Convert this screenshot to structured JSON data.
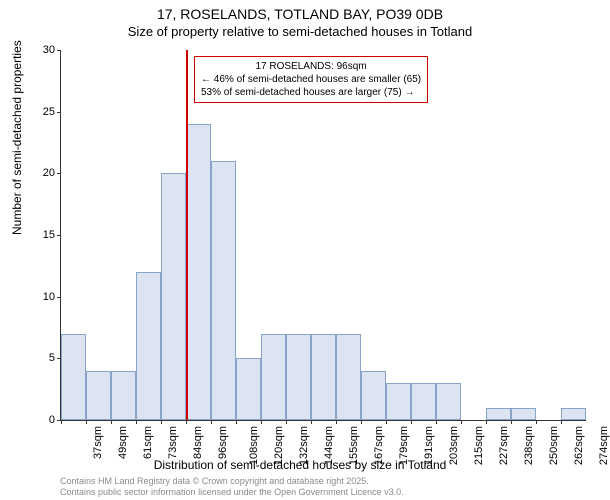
{
  "title": {
    "main": "17, ROSELANDS, TOTLAND BAY, PO39 0DB",
    "sub": "Size of property relative to semi-detached houses in Totland"
  },
  "axes": {
    "y_label": "Number of semi-detached properties",
    "x_label": "Distribution of semi-detached houses by size in Totland",
    "y_min": 0,
    "y_max": 30,
    "y_ticks": [
      0,
      5,
      10,
      15,
      20,
      25,
      30
    ],
    "x_ticks": [
      "37sqm",
      "49sqm",
      "61sqm",
      "73sqm",
      "84sqm",
      "96sqm",
      "108sqm",
      "120sqm",
      "132sqm",
      "144sqm",
      "155sqm",
      "167sqm",
      "179sqm",
      "191sqm",
      "203sqm",
      "215sqm",
      "227sqm",
      "238sqm",
      "250sqm",
      "262sqm",
      "274sqm"
    ]
  },
  "histogram": {
    "type": "histogram",
    "bar_color": "#dbe4f0",
    "bar_border_color": "#8aa3c8",
    "values": [
      7,
      4,
      4,
      12,
      20,
      24,
      21,
      5,
      7,
      7,
      7,
      7,
      4,
      3,
      3,
      3,
      0,
      1,
      1,
      0,
      1
    ]
  },
  "reference": {
    "x_index": 5,
    "line_color": "#cc0000"
  },
  "annotation": {
    "border_color": "#cc0000",
    "lines": [
      "17 ROSELANDS: 96sqm",
      "← 46% of semi-detached houses are smaller (65)",
      "53% of semi-detached houses are larger (75) →"
    ]
  },
  "footer": {
    "line1": "Contains HM Land Registry data © Crown copyright and database right 2025.",
    "line2": "Contains public sector information licensed under the Open Government Licence v3.0."
  },
  "style": {
    "background": "#ffffff",
    "axis_color": "#333333",
    "tick_font_size": 11,
    "title_font_size": 14,
    "subtitle_font_size": 13,
    "label_font_size": 12,
    "footer_color": "#8a8a8a"
  }
}
